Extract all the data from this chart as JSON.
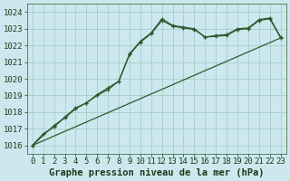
{
  "bg_color": "#cce8ee",
  "plot_bg_color": "#cce8ee",
  "line_color": "#2d5a2d",
  "grid_color": "#aacccc",
  "text_color": "#1a3a1a",
  "xlabel": "Graphe pression niveau de la mer (hPa)",
  "ylim": [
    1015.5,
    1024.5
  ],
  "xlim": [
    -0.5,
    23.5
  ],
  "yticks": [
    1016,
    1017,
    1018,
    1019,
    1020,
    1021,
    1022,
    1023,
    1024
  ],
  "xticks": [
    0,
    1,
    2,
    3,
    4,
    5,
    6,
    7,
    8,
    9,
    10,
    11,
    12,
    13,
    14,
    15,
    16,
    17,
    18,
    19,
    20,
    21,
    22,
    23
  ],
  "series1_x": [
    0,
    1,
    2,
    3,
    4,
    5,
    6,
    7,
    8,
    9,
    10,
    11,
    12,
    13,
    14,
    15,
    16,
    17,
    18,
    19,
    20,
    21,
    22,
    23
  ],
  "series1_y": [
    1016.0,
    1016.7,
    1017.1,
    1017.7,
    1018.25,
    1018.55,
    1019.0,
    1019.35,
    1019.85,
    1021.5,
    1022.25,
    1022.75,
    1023.6,
    1023.2,
    1023.1,
    1023.0,
    1022.5,
    1022.6,
    1022.65,
    1023.0,
    1023.05,
    1023.55,
    1023.65,
    1022.5
  ],
  "series2_x": [
    0,
    2,
    3,
    4,
    5,
    6,
    7,
    8,
    9,
    10,
    11,
    12,
    13,
    14,
    15,
    16,
    17,
    18,
    19,
    20,
    21,
    22,
    23
  ],
  "series2_y": [
    1016.0,
    1017.2,
    1017.65,
    1018.2,
    1018.55,
    1019.05,
    1019.45,
    1019.85,
    1021.45,
    1022.2,
    1022.7,
    1023.5,
    1023.15,
    1023.05,
    1022.95,
    1022.5,
    1022.55,
    1022.6,
    1022.95,
    1023.0,
    1023.5,
    1023.6,
    1022.45
  ],
  "series3_x": [
    0,
    23
  ],
  "series3_y": [
    1016.0,
    1022.45
  ],
  "tick_fontsize": 6.5,
  "label_fontsize": 7.5
}
